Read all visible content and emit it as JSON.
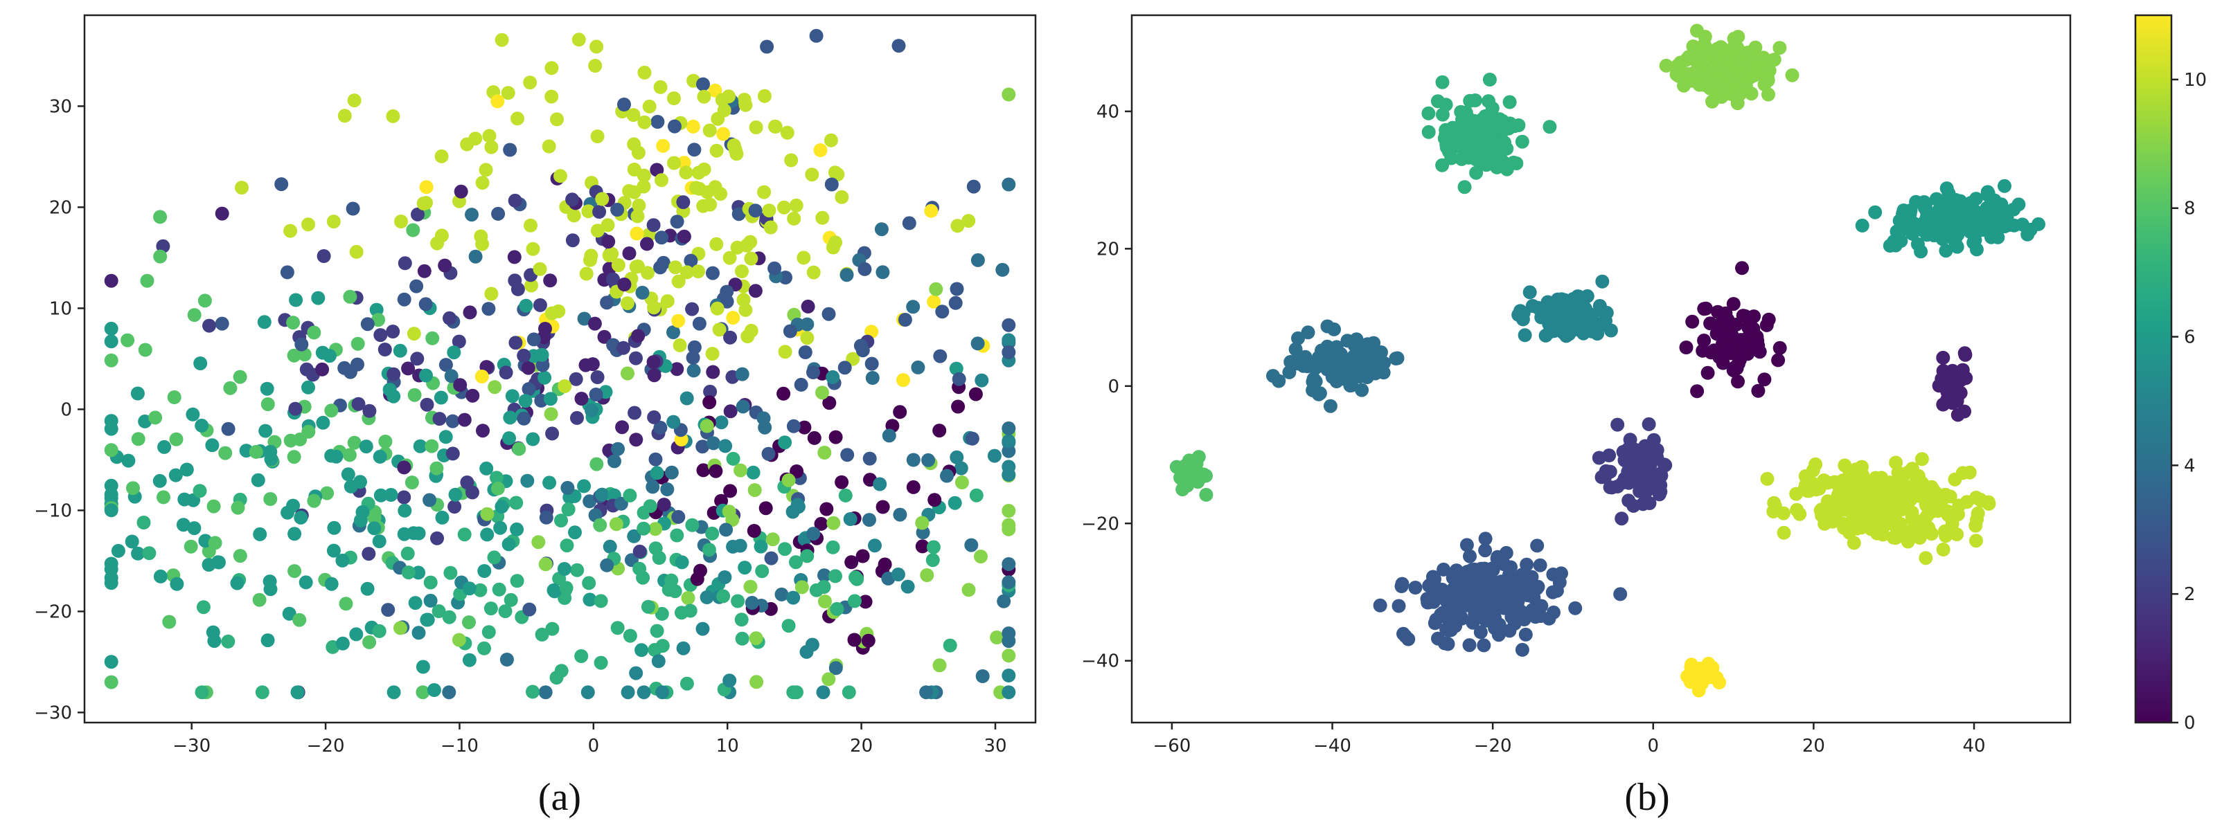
{
  "chart_data": [
    {
      "type": "scatter",
      "panel_label": "(a)",
      "title": "",
      "xlabel": "",
      "ylabel": "",
      "xlim": [
        -38,
        33
      ],
      "ylim": [
        -31,
        39
      ],
      "xticks": [
        -30,
        -20,
        -10,
        0,
        10,
        20,
        30
      ],
      "yticks": [
        -30,
        -20,
        -10,
        0,
        10,
        20,
        30
      ],
      "grid": false,
      "color_scale": "viridis",
      "color_range": [
        0,
        11
      ],
      "point_count": 1100,
      "description_of_distribution": "Twelve classes heavily overlapping in a broad cloud spanning x -36..31, y -28..37",
      "clusters": [
        {
          "class": 0,
          "center": [
            18,
            -10
          ],
          "spread": [
            7,
            8
          ],
          "count": 55
        },
        {
          "class": 1,
          "center": [
            -2,
            8
          ],
          "spread": [
            10,
            10
          ],
          "count": 60
        },
        {
          "class": 2,
          "center": [
            -5,
            5
          ],
          "spread": [
            11,
            11
          ],
          "count": 85
        },
        {
          "class": 3,
          "center": [
            5,
            8
          ],
          "spread": [
            13,
            12
          ],
          "count": 115
        },
        {
          "class": 4,
          "center": [
            12,
            -5
          ],
          "spread": [
            14,
            14
          ],
          "count": 85
        },
        {
          "class": 5,
          "center": [
            15,
            -15
          ],
          "spread": [
            12,
            10
          ],
          "count": 60
        },
        {
          "class": 6,
          "center": [
            -15,
            -8
          ],
          "spread": [
            14,
            9
          ],
          "count": 180
        },
        {
          "class": 7,
          "center": [
            0,
            -18
          ],
          "spread": [
            14,
            6
          ],
          "count": 120
        },
        {
          "class": 8,
          "center": [
            -22,
            -5
          ],
          "spread": [
            10,
            10
          ],
          "count": 90
        },
        {
          "class": 9,
          "center": [
            15,
            -10
          ],
          "spread": [
            12,
            12
          ],
          "count": 55
        },
        {
          "class": 10,
          "center": [
            5,
            20
          ],
          "spread": [
            10,
            8
          ],
          "count": 170
        },
        {
          "class": 11,
          "center": [
            8,
            15
          ],
          "spread": [
            13,
            10
          ],
          "count": 25
        }
      ]
    },
    {
      "type": "scatter",
      "panel_label": "(b)",
      "title": "",
      "xlabel": "",
      "ylabel": "",
      "xlim": [
        -65,
        52
      ],
      "ylim": [
        -49,
        54
      ],
      "xticks": [
        -60,
        -40,
        -20,
        0,
        20,
        40
      ],
      "yticks": [
        -40,
        -20,
        0,
        20,
        40
      ],
      "grid": false,
      "color_scale": "viridis",
      "colorbar": {
        "range": [
          0,
          11
        ],
        "ticks": [
          0,
          2,
          4,
          6,
          8,
          10
        ]
      },
      "clusters": [
        {
          "class": 0,
          "center": [
            10,
            6.5
          ],
          "spread": [
            2.2,
            2.8
          ],
          "count": 80
        },
        {
          "class": 1,
          "center": [
            37.5,
            0
          ],
          "spread": [
            0.8,
            2.0
          ],
          "count": 30
        },
        {
          "class": 2,
          "center": [
            -2,
            -12
          ],
          "spread": [
            2.2,
            2.4
          ],
          "count": 80
        },
        {
          "class": 3,
          "center": [
            -21,
            -31
          ],
          "spread": [
            4.5,
            3.2
          ],
          "count": 200
        },
        {
          "class": 4,
          "center": [
            -39,
            3
          ],
          "spread": [
            3.0,
            2.0
          ],
          "count": 110
        },
        {
          "class": 5,
          "center": [
            -11,
            10.5
          ],
          "spread": [
            2.6,
            1.7
          ],
          "count": 100
        },
        {
          "class": 6,
          "center": [
            38,
            24
          ],
          "spread": [
            3.8,
            2.0
          ],
          "count": 180
        },
        {
          "class": 7,
          "center": [
            -22,
            36.5
          ],
          "spread": [
            2.8,
            2.5
          ],
          "count": 150
        },
        {
          "class": 8,
          "center": [
            -57.5,
            -13
          ],
          "spread": [
            0.9,
            1.0
          ],
          "count": 40
        },
        {
          "class": 9,
          "center": [
            8.5,
            46
          ],
          "spread": [
            2.8,
            2.0
          ],
          "count": 150
        },
        {
          "class": 10,
          "center": [
            29,
            -17
          ],
          "spread": [
            5.5,
            2.8
          ],
          "count": 260
        },
        {
          "class": 11,
          "center": [
            6.5,
            -42
          ],
          "spread": [
            0.8,
            0.9
          ],
          "count": 30
        }
      ]
    }
  ]
}
